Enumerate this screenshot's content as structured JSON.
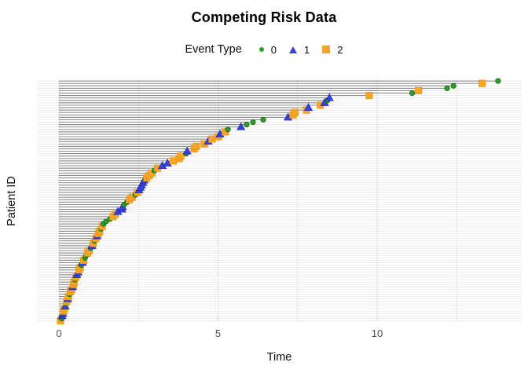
{
  "chart": {
    "title": "Competing Risk Data",
    "legend": {
      "title": "Event Type",
      "items": [
        {
          "label": "0",
          "marker": "circle",
          "color": "#2e9e2e"
        },
        {
          "label": "1",
          "marker": "triangle",
          "color": "#3742d9"
        },
        {
          "label": "2",
          "marker": "square",
          "color": "#f7a428"
        }
      ]
    },
    "xlabel": "Time",
    "ylabel": "Patient ID",
    "x_ticks": [
      {
        "value": 0,
        "label": "0"
      },
      {
        "value": 5,
        "label": "5"
      },
      {
        "value": 10,
        "label": "10"
      }
    ],
    "x_minor_ticks": [
      2.5,
      7.5,
      12.5
    ],
    "colors": {
      "event_0": "#2e9e2e",
      "event_1": "#3742d9",
      "event_2": "#f7a428",
      "segment": "#7d7d7d",
      "row_grid": "#e9e9e9",
      "v_grid": "#e4e4e4",
      "tick_text": "#4d4d4d"
    }
  },
  "chart_data": {
    "type": "scatter",
    "title": "Competing Risk Data",
    "xlabel": "Time",
    "ylabel": "Patient ID",
    "xlim": [
      0,
      13.8
    ],
    "grid": true,
    "legend_position": "top",
    "description": "One horizontal segment per patient from time 0 to the observed time, ending in a marker coding the event type (0 = green circle, 1 = blue triangle, 2 = orange square). Patients are ordered bottom-to-top by increasing time; the y axis has no tick labels.",
    "n_patients": 100,
    "times": [
      0.05,
      0.09,
      0.1,
      0.12,
      0.15,
      0.17,
      0.2,
      0.22,
      0.25,
      0.28,
      0.3,
      0.33,
      0.36,
      0.4,
      0.43,
      0.46,
      0.48,
      0.5,
      0.53,
      0.56,
      0.6,
      0.63,
      0.67,
      0.7,
      0.74,
      0.78,
      0.82,
      0.86,
      0.9,
      0.95,
      1.0,
      1.04,
      1.08,
      1.12,
      1.16,
      1.2,
      1.24,
      1.28,
      1.32,
      1.36,
      1.4,
      1.48,
      1.6,
      1.7,
      1.77,
      1.85,
      1.98,
      2.0,
      2.05,
      2.14,
      2.22,
      2.3,
      2.4,
      2.47,
      2.52,
      2.56,
      2.6,
      2.64,
      2.68,
      2.76,
      2.84,
      2.92,
      3.0,
      3.1,
      3.25,
      3.41,
      3.6,
      3.78,
      3.83,
      4.0,
      4.03,
      4.25,
      4.32,
      4.57,
      4.69,
      4.81,
      5.01,
      5.06,
      5.23,
      5.31,
      5.72,
      5.9,
      6.1,
      6.42,
      7.2,
      7.36,
      7.42,
      7.78,
      7.84,
      8.22,
      8.35,
      8.44,
      8.5,
      9.75,
      11.1,
      11.3,
      12.2,
      12.4,
      13.3,
      13.8
    ],
    "events": [
      2,
      0,
      1,
      1,
      2,
      2,
      1,
      0,
      2,
      1,
      2,
      0,
      2,
      2,
      1,
      2,
      2,
      0,
      2,
      1,
      1,
      2,
      2,
      0,
      1,
      2,
      0,
      0,
      2,
      2,
      0,
      1,
      2,
      0,
      2,
      1,
      2,
      2,
      0,
      2,
      0,
      0,
      0,
      2,
      2,
      1,
      1,
      1,
      0,
      0,
      2,
      2,
      0,
      2,
      1,
      1,
      1,
      1,
      1,
      2,
      2,
      2,
      0,
      2,
      1,
      1,
      2,
      2,
      2,
      0,
      1,
      2,
      2,
      2,
      1,
      2,
      2,
      1,
      2,
      0,
      1,
      0,
      0,
      0,
      1,
      2,
      2,
      2,
      1,
      2,
      1,
      0,
      1,
      2,
      0,
      2,
      0,
      0,
      2,
      0
    ]
  }
}
